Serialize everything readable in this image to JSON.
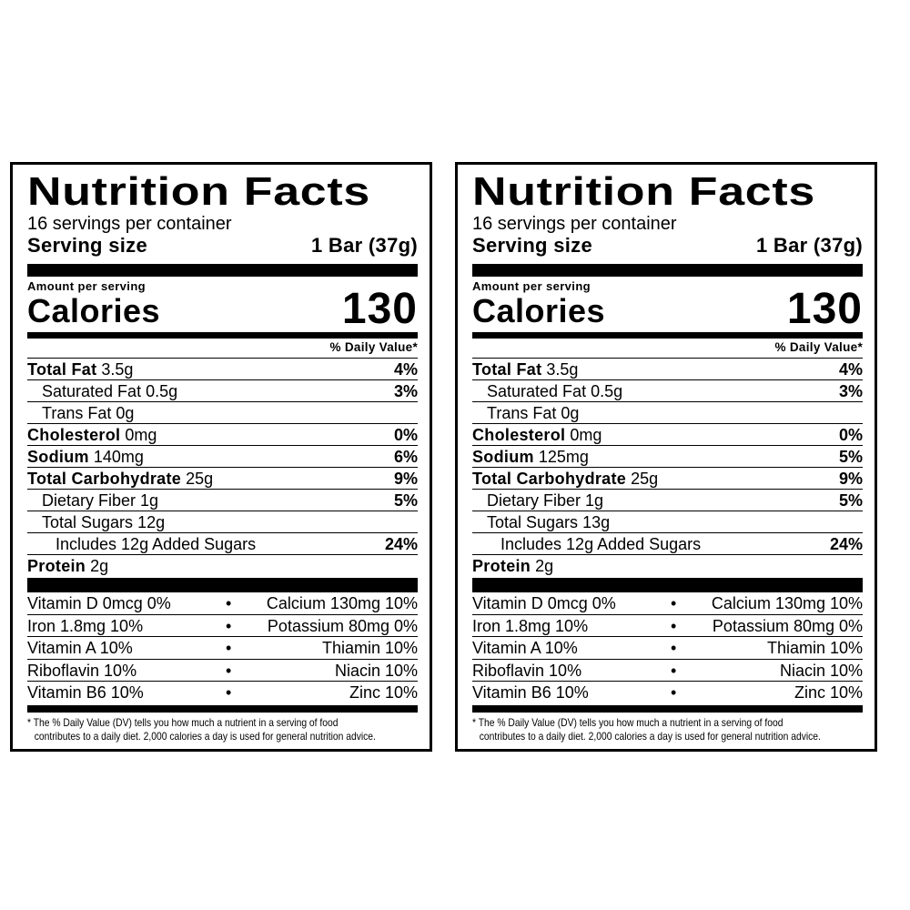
{
  "panels": [
    {
      "title": "Nutrition Facts",
      "servings_per_container": "16 servings per container",
      "serving_size_label": "Serving size",
      "serving_size_value": "1 Bar (37g)",
      "amount_per_serving": "Amount per serving",
      "calories_label": "Calories",
      "calories_value": "130",
      "daily_value_header": "% Daily Value*",
      "nutrients": {
        "total_fat": {
          "label": "Total Fat",
          "amount": "3.5g",
          "dv": "4%"
        },
        "saturated_fat": {
          "label": "Saturated Fat",
          "amount": "0.5g",
          "dv": "3%"
        },
        "trans_fat": {
          "label": "Trans Fat",
          "amount": "0g"
        },
        "cholesterol": {
          "label": "Cholesterol",
          "amount": "0mg",
          "dv": "0%"
        },
        "sodium": {
          "label": "Sodium",
          "amount": "140mg",
          "dv": "6%"
        },
        "total_carbohydrate": {
          "label": "Total Carbohydrate",
          "amount": "25g",
          "dv": "9%"
        },
        "dietary_fiber": {
          "label": "Dietary Fiber",
          "amount": "1g",
          "dv": "5%"
        },
        "total_sugars": {
          "label": "Total Sugars",
          "amount": "12g"
        },
        "added_sugars": {
          "label": "Includes 12g Added Sugars",
          "dv": "24%"
        },
        "protein": {
          "label": "Protein",
          "amount": "2g"
        }
      },
      "vitamins": [
        {
          "left": "Vitamin D 0mcg 0%",
          "dot": "•",
          "right": "Calcium 130mg 10%"
        },
        {
          "left": "Iron 1.8mg 10%",
          "dot": "•",
          "right": "Potassium 80mg 0%"
        },
        {
          "left": "Vitamin A 10%",
          "dot": "•",
          "right": "Thiamin 10%"
        },
        {
          "left": "Riboflavin 10%",
          "dot": "•",
          "right": "Niacin 10%"
        },
        {
          "left": "Vitamin B6 10%",
          "dot": "•",
          "right": "Zinc 10%"
        }
      ],
      "footnote_line1": "* The % Daily Value (DV) tells you how much a nutrient in a serving of food",
      "footnote_line2": "contributes to a daily diet. 2,000 calories a day is used for general nutrition advice."
    },
    {
      "title": "Nutrition Facts",
      "servings_per_container": "16 servings per container",
      "serving_size_label": "Serving size",
      "serving_size_value": "1 Bar (37g)",
      "amount_per_serving": "Amount per serving",
      "calories_label": "Calories",
      "calories_value": "130",
      "daily_value_header": "% Daily Value*",
      "nutrients": {
        "total_fat": {
          "label": "Total Fat",
          "amount": "3.5g",
          "dv": "4%"
        },
        "saturated_fat": {
          "label": "Saturated Fat",
          "amount": "0.5g",
          "dv": "3%"
        },
        "trans_fat": {
          "label": "Trans Fat",
          "amount": "0g"
        },
        "cholesterol": {
          "label": "Cholesterol",
          "amount": "0mg",
          "dv": "0%"
        },
        "sodium": {
          "label": "Sodium",
          "amount": "125mg",
          "dv": "5%"
        },
        "total_carbohydrate": {
          "label": "Total Carbohydrate",
          "amount": "25g",
          "dv": "9%"
        },
        "dietary_fiber": {
          "label": "Dietary Fiber",
          "amount": "1g",
          "dv": "5%"
        },
        "total_sugars": {
          "label": "Total Sugars",
          "amount": "13g"
        },
        "added_sugars": {
          "label": "Includes 12g Added Sugars",
          "dv": "24%"
        },
        "protein": {
          "label": "Protein",
          "amount": "2g"
        }
      },
      "vitamins": [
        {
          "left": "Vitamin D 0mcg 0%",
          "dot": "•",
          "right": "Calcium 130mg 10%"
        },
        {
          "left": "Iron 1.8mg 10%",
          "dot": "•",
          "right": "Potassium 80mg 0%"
        },
        {
          "left": "Vitamin A 10%",
          "dot": "•",
          "right": "Thiamin 10%"
        },
        {
          "left": "Riboflavin 10%",
          "dot": "•",
          "right": "Niacin 10%"
        },
        {
          "left": "Vitamin B6 10%",
          "dot": "•",
          "right": "Zinc 10%"
        }
      ],
      "footnote_line1": "* The % Daily Value (DV) tells you how much a nutrient in a serving of food",
      "footnote_line2": "contributes to a daily diet. 2,000 calories a day is used for general nutrition advice."
    }
  ]
}
